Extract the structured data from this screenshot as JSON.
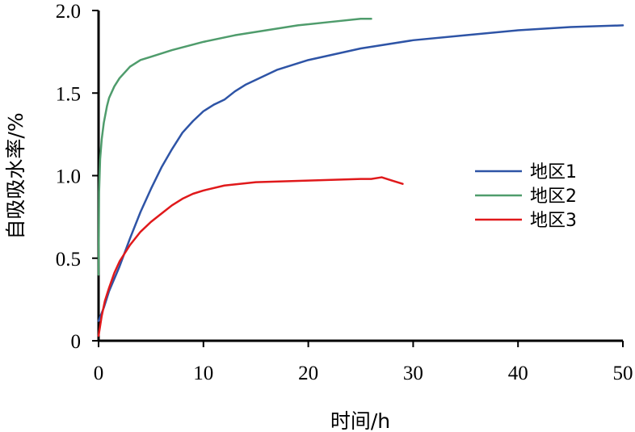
{
  "chart_data": {
    "type": "line",
    "title": "",
    "xlabel": "时间/h",
    "ylabel": "自吸吸水率/%",
    "xlim": [
      0,
      50
    ],
    "ylim": [
      0,
      2.0
    ],
    "x_ticks": [
      0,
      10,
      20,
      30,
      40,
      50
    ],
    "y_ticks": [
      0,
      0.5,
      1.0,
      1.5,
      2.0
    ],
    "x_tick_labels": [
      "0",
      "10",
      "20",
      "30",
      "40",
      "50"
    ],
    "y_tick_labels": [
      "0",
      "0.5",
      "1.0",
      "1.5",
      "2.0"
    ],
    "grid": false,
    "legend_position": "right",
    "series": [
      {
        "name": "地区1",
        "color": "#2e54a6",
        "points": [
          [
            0,
            0.12
          ],
          [
            0.5,
            0.2
          ],
          [
            1,
            0.3
          ],
          [
            2,
            0.45
          ],
          [
            3,
            0.62
          ],
          [
            4,
            0.78
          ],
          [
            5,
            0.92
          ],
          [
            6,
            1.05
          ],
          [
            7,
            1.16
          ],
          [
            8,
            1.26
          ],
          [
            9,
            1.33
          ],
          [
            10,
            1.39
          ],
          [
            11,
            1.43
          ],
          [
            12,
            1.46
          ],
          [
            13,
            1.51
          ],
          [
            14,
            1.55
          ],
          [
            15,
            1.58
          ],
          [
            17,
            1.64
          ],
          [
            20,
            1.7
          ],
          [
            25,
            1.77
          ],
          [
            30,
            1.82
          ],
          [
            35,
            1.85
          ],
          [
            40,
            1.88
          ],
          [
            45,
            1.9
          ],
          [
            50,
            1.91
          ]
        ]
      },
      {
        "name": "地区2",
        "color": "#4f9c6c",
        "points": [
          [
            0,
            0.4
          ],
          [
            0.05,
            0.9
          ],
          [
            0.15,
            1.1
          ],
          [
            0.3,
            1.22
          ],
          [
            0.5,
            1.32
          ],
          [
            0.8,
            1.42
          ],
          [
            1,
            1.47
          ],
          [
            1.5,
            1.54
          ],
          [
            2,
            1.59
          ],
          [
            3,
            1.66
          ],
          [
            4,
            1.7
          ],
          [
            5,
            1.72
          ],
          [
            7,
            1.76
          ],
          [
            10,
            1.81
          ],
          [
            13,
            1.85
          ],
          [
            16,
            1.88
          ],
          [
            19,
            1.91
          ],
          [
            22,
            1.93
          ],
          [
            25,
            1.95
          ],
          [
            26,
            1.95
          ]
        ]
      },
      {
        "name": "地区3",
        "color": "#e0191b",
        "points": [
          [
            0,
            0.03
          ],
          [
            0.3,
            0.15
          ],
          [
            0.6,
            0.24
          ],
          [
            1,
            0.32
          ],
          [
            1.5,
            0.41
          ],
          [
            2,
            0.48
          ],
          [
            3,
            0.58
          ],
          [
            4,
            0.66
          ],
          [
            5,
            0.72
          ],
          [
            6,
            0.77
          ],
          [
            7,
            0.82
          ],
          [
            8,
            0.86
          ],
          [
            9,
            0.89
          ],
          [
            10,
            0.91
          ],
          [
            12,
            0.94
          ],
          [
            15,
            0.96
          ],
          [
            20,
            0.97
          ],
          [
            25,
            0.98
          ],
          [
            26,
            0.98
          ],
          [
            27,
            0.99
          ],
          [
            28,
            0.97
          ],
          [
            29,
            0.95
          ]
        ]
      }
    ]
  }
}
